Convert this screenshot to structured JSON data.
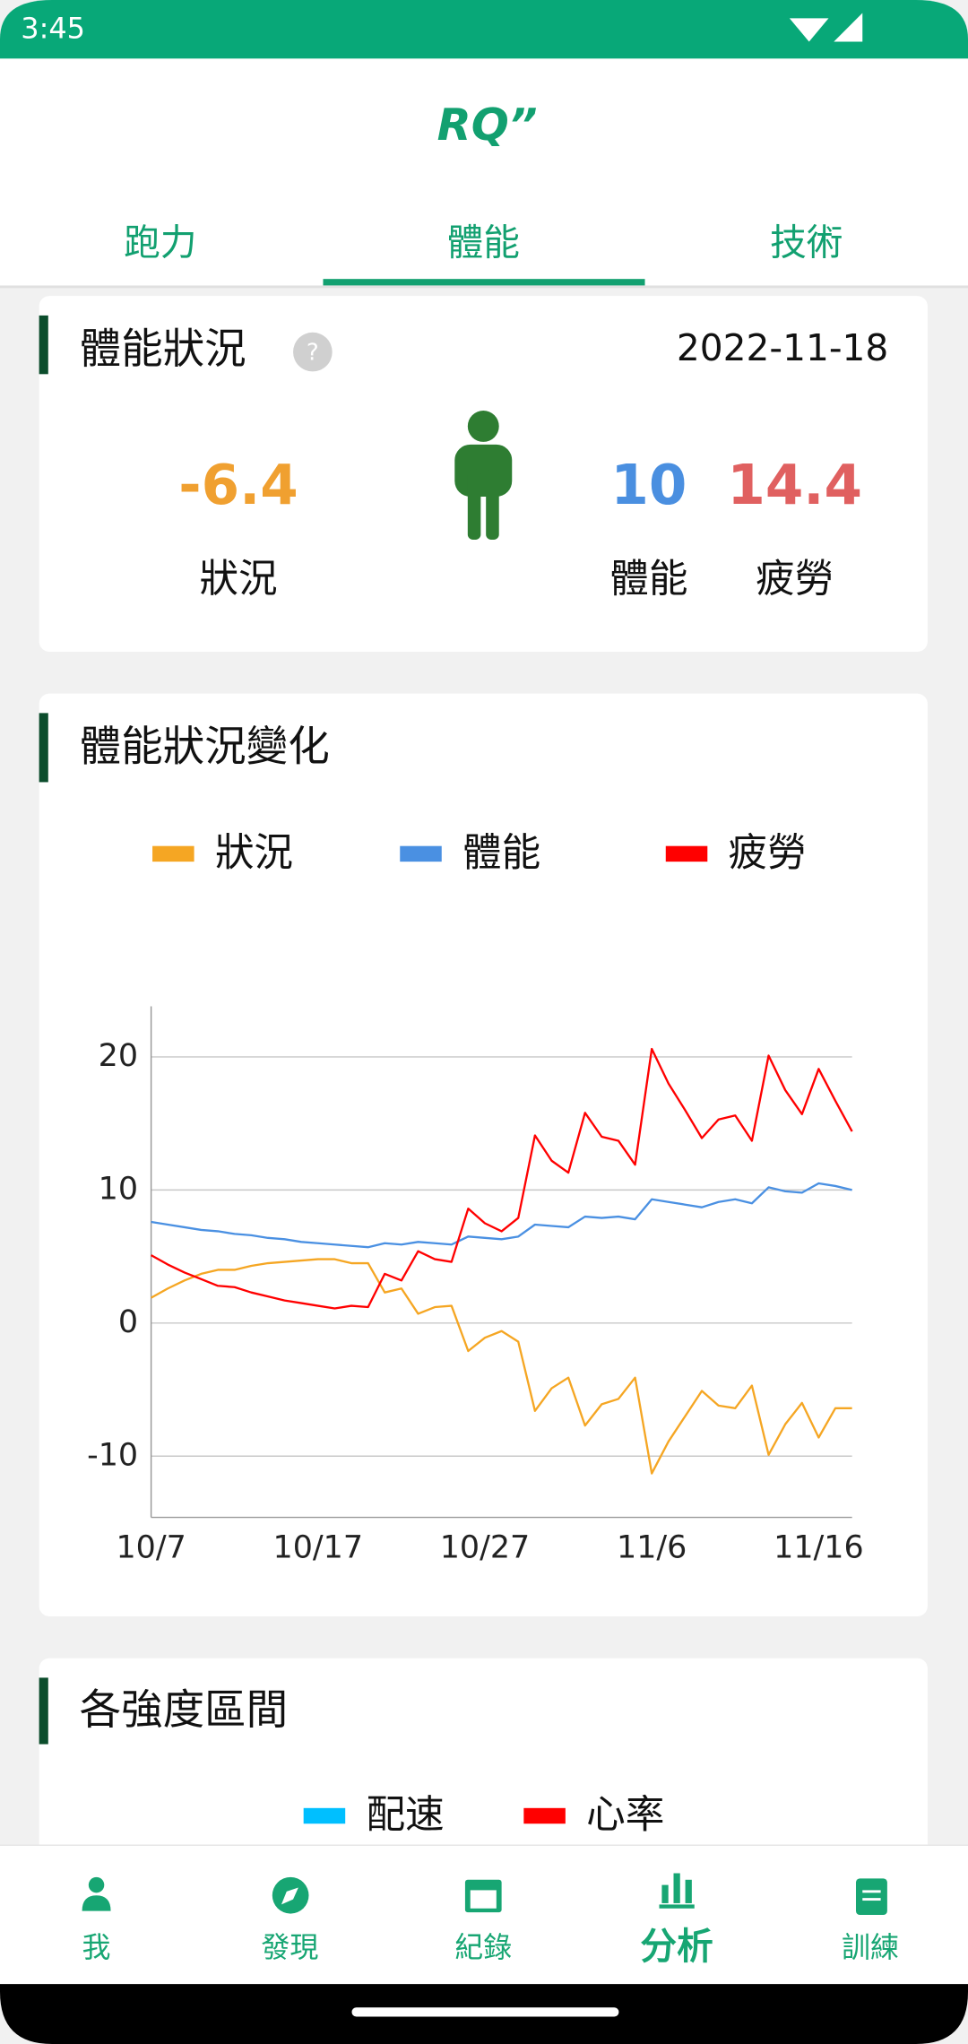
{
  "status_bar": {
    "time": "3:45"
  },
  "header": {
    "logo": "RQ”",
    "tabs": [
      "跑力",
      "體能",
      "技術"
    ]
  },
  "condition_card": {
    "title": "體能狀況",
    "date": "2022-11-18",
    "metrics": [
      {
        "value": "-6.4",
        "label": "狀況"
      },
      {
        "value": "10",
        "label": "體能"
      },
      {
        "value": "14.4",
        "label": "疲勞"
      }
    ]
  },
  "chart_data": {
    "type": "line",
    "title": "體能狀況變化",
    "categories": [
      "10/7",
      null,
      null,
      null,
      null,
      null,
      null,
      null,
      null,
      null,
      "10/17",
      null,
      null,
      null,
      null,
      null,
      null,
      null,
      null,
      null,
      "10/27",
      null,
      null,
      null,
      null,
      null,
      null,
      null,
      null,
      null,
      "11/6",
      null,
      null,
      null,
      null,
      null,
      null,
      null,
      null,
      null,
      "11/16",
      null,
      null
    ],
    "series": [
      {
        "name": "狀況",
        "color": "#f5a623",
        "values": [
          1.9,
          2.6,
          3.2,
          3.7,
          4.0,
          4.0,
          4.3,
          4.5,
          4.6,
          4.7,
          4.8,
          4.8,
          4.5,
          4.5,
          2.3,
          2.6,
          0.7,
          1.2,
          1.3,
          -2.1,
          -1.1,
          -0.6,
          -1.4,
          -6.6,
          -4.9,
          -4.1,
          -7.7,
          -6.1,
          -5.7,
          -4.1,
          -11.3,
          -8.9,
          -7.0,
          -5.1,
          -6.2,
          -6.4,
          -4.7,
          -9.9,
          -7.6,
          -6.0,
          -8.6,
          -6.4,
          -6.4
        ]
      },
      {
        "name": "體能",
        "color": "#4a90e2",
        "values": [
          7.6,
          7.4,
          7.2,
          7.0,
          6.9,
          6.7,
          6.6,
          6.4,
          6.3,
          6.1,
          6.0,
          5.9,
          5.8,
          5.7,
          6.0,
          5.9,
          6.1,
          6.0,
          5.9,
          6.5,
          6.4,
          6.3,
          6.5,
          7.4,
          7.3,
          7.2,
          8.0,
          7.9,
          8.0,
          7.8,
          9.3,
          9.1,
          8.9,
          8.7,
          9.1,
          9.3,
          9.0,
          10.2,
          9.9,
          9.8,
          10.5,
          10.3,
          10.0
        ]
      },
      {
        "name": "疲勞",
        "color": "#ff0000",
        "values": [
          5.1,
          4.4,
          3.8,
          3.3,
          2.8,
          2.7,
          2.3,
          2.0,
          1.7,
          1.5,
          1.3,
          1.1,
          1.3,
          1.2,
          3.7,
          3.2,
          5.4,
          4.8,
          4.6,
          8.6,
          7.5,
          6.9,
          7.9,
          14.1,
          12.2,
          11.3,
          15.8,
          14.0,
          13.7,
          11.9,
          20.6,
          18.0,
          16.0,
          13.9,
          15.3,
          15.6,
          13.7,
          20.1,
          17.5,
          15.7,
          19.1,
          16.7,
          14.4
        ]
      }
    ],
    "ylim": [
      -14.6,
      23.8
    ],
    "yticks": [
      -10,
      0,
      10,
      20
    ],
    "grid": true
  },
  "intensity_card": {
    "title": "各強度區間",
    "legend": [
      {
        "name": "配速",
        "color": "#00bfff"
      },
      {
        "name": "心率",
        "color": "#ff0000"
      }
    ]
  },
  "bottom_nav": [
    "我",
    "發現",
    "紀錄",
    "分析",
    "訓練"
  ]
}
